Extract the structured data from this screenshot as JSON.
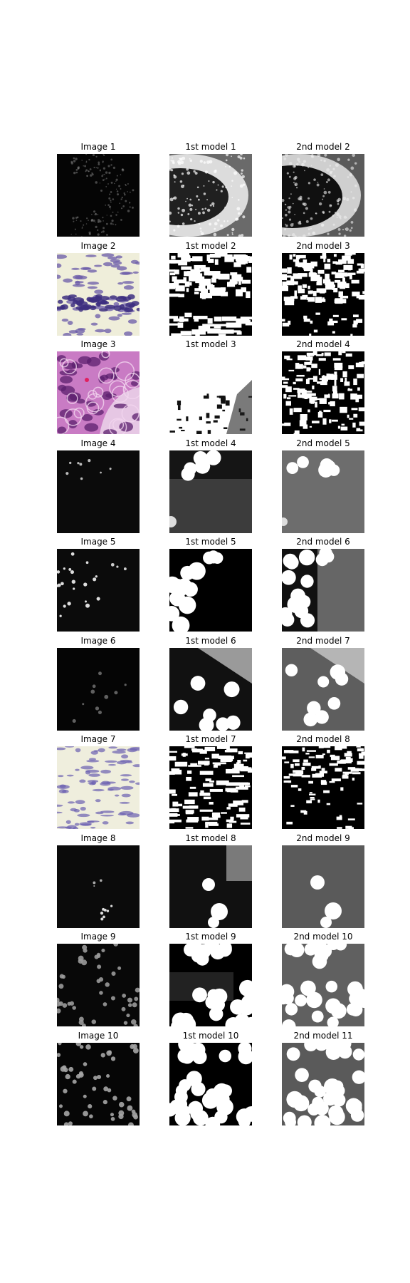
{
  "figure": {
    "rows": [
      {
        "input": {
          "title": "Image 1",
          "style": "fluor-wedge"
        },
        "model1": {
          "title": "1st model 1",
          "style": "mask-wedge"
        },
        "model2": {
          "title": "2nd model 2",
          "style": "mask-wedge-dark"
        }
      },
      {
        "input": {
          "title": "Image 2",
          "style": "he-pale"
        },
        "model1": {
          "title": "1st model 2",
          "style": "mask-tissue-bw"
        },
        "model2": {
          "title": "2nd model 3",
          "style": "mask-tissue-bw2"
        }
      },
      {
        "input": {
          "title": "Image 3",
          "style": "he-pink"
        },
        "model1": {
          "title": "1st model 3",
          "style": "mask-white"
        },
        "model2": {
          "title": "2nd model 4",
          "style": "mask-tissue-bw3"
        }
      },
      {
        "input": {
          "title": "Image 4",
          "style": "fluor-sparse"
        },
        "model1": {
          "title": "1st model 4",
          "style": "mask-blobs-gray"
        },
        "model2": {
          "title": "2nd model 5",
          "style": "mask-blobs-midgray"
        }
      },
      {
        "input": {
          "title": "Image 5",
          "style": "fluor-cluster"
        },
        "model1": {
          "title": "1st model 5",
          "style": "mask-blobs-black"
        },
        "model2": {
          "title": "2nd model 6",
          "style": "mask-blobs-black-gray"
        }
      },
      {
        "input": {
          "title": "Image 6",
          "style": "fluor-dim"
        },
        "model1": {
          "title": "1st model 6",
          "style": "mask-blobs-gradient"
        },
        "model2": {
          "title": "2nd model 7",
          "style": "mask-blobs-gradient2"
        }
      },
      {
        "input": {
          "title": "Image 7",
          "style": "he-pale2"
        },
        "model1": {
          "title": "1st model 7",
          "style": "mask-tissue-bw4"
        },
        "model2": {
          "title": "2nd model 8",
          "style": "mask-tissue-bw5"
        }
      },
      {
        "input": {
          "title": "Image 8",
          "style": "fluor-few"
        },
        "model1": {
          "title": "1st model 8",
          "style": "mask-few-blobs"
        },
        "model2": {
          "title": "2nd model 9",
          "style": "mask-few-blobs-gray"
        }
      },
      {
        "input": {
          "title": "Image 9",
          "style": "fluor-many"
        },
        "model1": {
          "title": "1st model 9",
          "style": "mask-many-blobs"
        },
        "model2": {
          "title": "2nd model 10",
          "style": "mask-many-blobs-gray"
        }
      },
      {
        "input": {
          "title": "Image 10",
          "style": "fluor-many2"
        },
        "model1": {
          "title": "1st model 10",
          "style": "mask-many-blobs2"
        },
        "model2": {
          "title": "2nd model 11",
          "style": "mask-many-blobs2-gray"
        }
      }
    ]
  }
}
